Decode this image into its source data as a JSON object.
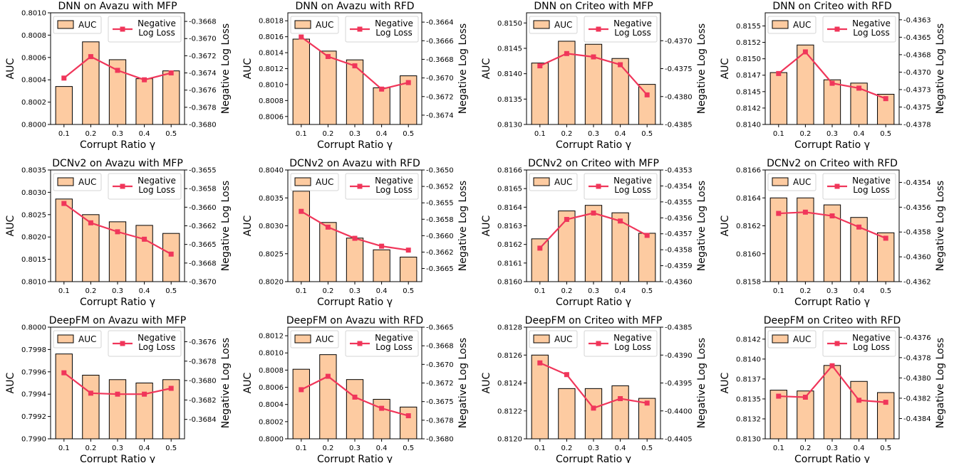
{
  "style": {
    "bar_fill": "#fdcba1",
    "bar_edge": "#000000",
    "line_color": "#f0365a"
  },
  "chart_data": [
    {
      "type": "bar",
      "title": "DNN on Avazu with MFP",
      "xlabel": "Corrupt Ratio γ",
      "ylabel": "AUC",
      "ylabel_right": "Negative Log Loss",
      "categories": [
        "0.1",
        "0.2",
        "0.3",
        "0.4",
        "0.5"
      ],
      "legend_position": "top",
      "series": [
        {
          "name": "AUC",
          "kind": "bar",
          "axis": "left",
          "values": [
            0.80034,
            0.80074,
            0.80058,
            0.80041,
            0.80048
          ]
        },
        {
          "name": "Negative Log Loss",
          "legend_lines": [
            "Negative",
            "Log Loss"
          ],
          "kind": "line",
          "axis": "right",
          "values": [
            -0.36746,
            -0.36721,
            -0.36737,
            -0.36748,
            -0.3674
          ]
        }
      ],
      "ylim": [
        0.8,
        0.801
      ],
      "y2lim": [
        -0.368,
        -0.3667
      ],
      "yticks": [
        0.8,
        0.8002,
        0.8004,
        0.8006,
        0.8008,
        0.801
      ],
      "y2ticks": [
        -0.368,
        -0.3678,
        -0.3676,
        -0.3674,
        -0.3672,
        -0.367,
        -0.3668
      ],
      "ytick_labels": [
        "0.8000",
        "0.8002",
        "0.8004",
        "0.8006",
        "0.8008",
        "0.8010"
      ],
      "y2tick_labels": [
        "-0.3680",
        "-0.3678",
        "-0.3676",
        "-0.3674",
        "-0.3672",
        "-0.3670",
        "-0.3668"
      ]
    },
    {
      "type": "bar",
      "title": "DNN on Avazu with RFD",
      "xlabel": "Corrupt Ratio γ",
      "ylabel": "AUC",
      "ylabel_right": "Negative Log Loss",
      "categories": [
        "0.1",
        "0.2",
        "0.3",
        "0.4",
        "0.5"
      ],
      "legend_position": "top",
      "series": [
        {
          "name": "AUC",
          "kind": "bar",
          "axis": "left",
          "values": [
            0.80157,
            0.80142,
            0.80131,
            0.80096,
            0.80111
          ]
        },
        {
          "name": "Negative Log Loss",
          "legend_lines": [
            "Negative",
            "Log Loss"
          ],
          "kind": "line",
          "axis": "right",
          "values": [
            -0.36656,
            -0.36677,
            -0.36687,
            -0.36712,
            -0.36705
          ]
        }
      ],
      "ylim": [
        0.8005,
        0.8019
      ],
      "y2lim": [
        -0.3675,
        -0.3663
      ],
      "yticks": [
        0.8006,
        0.8008,
        0.801,
        0.8012,
        0.8014,
        0.8016,
        0.8018
      ],
      "y2ticks": [
        -0.3674,
        -0.3672,
        -0.367,
        -0.3668,
        -0.3666,
        -0.3664
      ],
      "ytick_labels": [
        "0.8006",
        "0.8008",
        "0.8010",
        "0.8012",
        "0.8014",
        "0.8016",
        "0.8018"
      ],
      "y2tick_labels": [
        "-0.3674",
        "-0.3672",
        "-0.3670",
        "-0.3668",
        "-0.3666",
        "-0.3664"
      ]
    },
    {
      "type": "bar",
      "title": "DNN on Criteo with MFP",
      "xlabel": "Corrupt Ratio γ",
      "ylabel": "AUC",
      "ylabel_right": "Negative Log Loss",
      "categories": [
        "0.1",
        "0.2",
        "0.3",
        "0.4",
        "0.5"
      ],
      "legend_position": "top",
      "series": [
        {
          "name": "AUC",
          "kind": "bar",
          "axis": "left",
          "values": [
            0.81421,
            0.81464,
            0.81458,
            0.8143,
            0.81379
          ]
        },
        {
          "name": "Negative Log Loss",
          "legend_lines": [
            "Negative",
            "Log Loss"
          ],
          "kind": "line",
          "axis": "right",
          "values": [
            -0.43745,
            -0.43723,
            -0.43729,
            -0.43743,
            -0.43797
          ]
        }
      ],
      "ylim": [
        0.813,
        0.8152
      ],
      "y2lim": [
        -0.4385,
        -0.4365
      ],
      "yticks": [
        0.813,
        0.8135,
        0.814,
        0.8145,
        0.815
      ],
      "y2ticks": [
        -0.4385,
        -0.438,
        -0.4375,
        -0.437
      ],
      "ytick_labels": [
        "0.8130",
        "0.8135",
        "0.8140",
        "0.8145",
        "0.8150"
      ],
      "y2tick_labels": [
        "-0.4385",
        "-0.4380",
        "-0.4375",
        "-0.4370"
      ]
    },
    {
      "type": "bar",
      "title": "DNN on Criteo with RFD",
      "xlabel": "Corrupt Ratio γ",
      "ylabel": "AUC",
      "ylabel_right": "Negative Log Loss",
      "categories": [
        "0.1",
        "0.2",
        "0.3",
        "0.4",
        "0.5"
      ],
      "legend_position": "top",
      "series": [
        {
          "name": "AUC",
          "kind": "bar",
          "axis": "left",
          "values": [
            0.81479,
            0.81521,
            0.81468,
            0.81463,
            0.81446
          ]
        },
        {
          "name": "Negative Log Loss",
          "legend_lines": [
            "Negative",
            "Log Loss"
          ],
          "kind": "line",
          "axis": "right",
          "values": [
            -0.43707,
            -0.43676,
            -0.43721,
            -0.43728,
            -0.43743
          ]
        }
      ],
      "ylim": [
        0.814,
        0.8157
      ],
      "y2lim": [
        -0.4378,
        -0.4362
      ],
      "yticks": [
        0.814,
        0.81425,
        0.8145,
        0.81475,
        0.815,
        0.81525,
        0.8155
      ],
      "y2ticks": [
        -0.4378,
        -0.43755,
        -0.4373,
        -0.43705,
        -0.4368,
        -0.43655,
        -0.4363
      ],
      "ytick_labels": [
        "0.8140",
        "0.8142",
        "0.8145",
        "0.8147",
        "0.8150",
        "0.8152",
        "0.8155"
      ],
      "y2tick_labels": [
        "-0.4378",
        "-0.4375",
        "-0.4373",
        "-0.4370",
        "-0.4368",
        "-0.4365",
        "-0.4363"
      ]
    },
    {
      "type": "bar",
      "title": "DCNv2 on Avazu with MFP",
      "xlabel": "Corrupt Ratio γ",
      "ylabel": "AUC",
      "ylabel_right": "Negative Log Loss",
      "categories": [
        "0.1",
        "0.2",
        "0.3",
        "0.4",
        "0.5"
      ],
      "legend_position": "top",
      "series": [
        {
          "name": "AUC",
          "kind": "bar",
          "axis": "left",
          "values": [
            0.80285,
            0.8025,
            0.80234,
            0.80226,
            0.80208
          ]
        },
        {
          "name": "Negative Log Loss",
          "legend_lines": [
            "Negative",
            "Log Loss"
          ],
          "kind": "line",
          "axis": "right",
          "values": [
            -0.36595,
            -0.36621,
            -0.36633,
            -0.36643,
            -0.36663
          ]
        }
      ],
      "ylim": [
        0.801,
        0.8035
      ],
      "y2lim": [
        -0.367,
        -0.3655
      ],
      "yticks": [
        0.801,
        0.8015,
        0.802,
        0.8025,
        0.803,
        0.8035
      ],
      "y2ticks": [
        -0.367,
        -0.36675,
        -0.3665,
        -0.36625,
        -0.366,
        -0.36575,
        -0.3655
      ],
      "ytick_labels": [
        "0.8010",
        "0.8015",
        "0.8020",
        "0.8025",
        "0.8030",
        "0.8035"
      ],
      "y2tick_labels": [
        "-0.3670",
        "-0.3668",
        "-0.3665",
        "-0.3662",
        "-0.3660",
        "-0.3658",
        "-0.3655"
      ]
    },
    {
      "type": "bar",
      "title": "DCNv2 on Avazu with RFD",
      "xlabel": "Corrupt Ratio γ",
      "ylabel": "AUC",
      "ylabel_right": "Negative Log Loss",
      "categories": [
        "0.1",
        "0.2",
        "0.3",
        "0.4",
        "0.5"
      ],
      "legend_position": "top",
      "series": [
        {
          "name": "AUC",
          "kind": "bar",
          "axis": "left",
          "values": [
            0.80362,
            0.80306,
            0.80278,
            0.80257,
            0.80244
          ]
        },
        {
          "name": "Negative Log Loss",
          "legend_lines": [
            "Negative",
            "Log Loss"
          ],
          "kind": "line",
          "axis": "right",
          "values": [
            -0.36563,
            -0.36587,
            -0.36604,
            -0.36616,
            -0.36622
          ]
        }
      ],
      "ylim": [
        0.802,
        0.804
      ],
      "y2lim": [
        -0.3667,
        -0.365
      ],
      "yticks": [
        0.802,
        0.8025,
        0.803,
        0.8035,
        0.804
      ],
      "y2ticks": [
        -0.3665,
        -0.36625,
        -0.366,
        -0.36575,
        -0.3655,
        -0.36525,
        -0.365
      ],
      "ytick_labels": [
        "0.8020",
        "0.8025",
        "0.8030",
        "0.8035",
        "0.8040"
      ],
      "y2tick_labels": [
        "-0.3665",
        "-0.3662",
        "-0.3660",
        "-0.3658",
        "-0.3655",
        "-0.3652",
        "-0.3650"
      ]
    },
    {
      "type": "bar",
      "title": "DCNv2 on Criteo with MFP",
      "xlabel": "Corrupt Ratio γ",
      "ylabel": "AUC",
      "ylabel_right": "Negative Log Loss",
      "categories": [
        "0.1",
        "0.2",
        "0.3",
        "0.4",
        "0.5"
      ],
      "legend_position": "top",
      "series": [
        {
          "name": "AUC",
          "kind": "bar",
          "axis": "left",
          "values": [
            0.81623,
            0.81638,
            0.81641,
            0.81637,
            0.81626
          ]
        },
        {
          "name": "Negative Log Loss",
          "legend_lines": [
            "Negative",
            "Log Loss"
          ],
          "kind": "line",
          "axis": "right",
          "values": [
            -0.43579,
            -0.43561,
            -0.43557,
            -0.43562,
            -0.43571
          ]
        }
      ],
      "ylim": [
        0.816,
        0.8166
      ],
      "y2lim": [
        -0.436,
        -0.4353
      ],
      "yticks": [
        0.816,
        0.8161,
        0.8162,
        0.8163,
        0.8164,
        0.8165,
        0.8166
      ],
      "y2ticks": [
        -0.436,
        -0.4359,
        -0.4358,
        -0.4357,
        -0.4356,
        -0.4355,
        -0.4354,
        -0.4353
      ],
      "ytick_labels": [
        "0.8160",
        "0.8161",
        "0.8162",
        "0.8163",
        "0.8164",
        "0.8165",
        "0.8166"
      ],
      "y2tick_labels": [
        "-0.4360",
        "-0.4359",
        "-0.4358",
        "-0.4357",
        "-0.4356",
        "-0.4355",
        "-0.4354",
        "-0.4353"
      ]
    },
    {
      "type": "bar",
      "title": "DCNv2 on Criteo with RFD",
      "xlabel": "Corrupt Ratio γ",
      "ylabel": "AUC",
      "ylabel_right": "Negative Log Loss",
      "categories": [
        "0.1",
        "0.2",
        "0.3",
        "0.4",
        "0.5"
      ],
      "legend_position": "top",
      "series": [
        {
          "name": "AUC",
          "kind": "bar",
          "axis": "left",
          "values": [
            0.8164,
            0.8164,
            0.81635,
            0.81626,
            0.81615
          ]
        },
        {
          "name": "Negative Log Loss",
          "legend_lines": [
            "Negative",
            "Log Loss"
          ],
          "kind": "line",
          "axis": "right",
          "values": [
            -0.43565,
            -0.43564,
            -0.43567,
            -0.43576,
            -0.43585
          ]
        }
      ],
      "ylim": [
        0.8158,
        0.8166
      ],
      "y2lim": [
        -0.4362,
        -0.4353
      ],
      "yticks": [
        0.8158,
        0.816,
        0.8162,
        0.8164,
        0.8166
      ],
      "y2ticks": [
        -0.4362,
        -0.436,
        -0.4358,
        -0.4356,
        -0.4354
      ],
      "ytick_labels": [
        "0.8158",
        "0.8160",
        "0.8162",
        "0.8164",
        "0.8166"
      ],
      "y2tick_labels": [
        "-0.4362",
        "-0.4360",
        "-0.4358",
        "-0.4356",
        "-0.4354"
      ]
    },
    {
      "type": "bar",
      "title": "DeepFM on Avazu with MFP",
      "xlabel": "Corrupt Ratio γ",
      "ylabel": "AUC",
      "ylabel_right": "Negative Log Loss",
      "categories": [
        "0.1",
        "0.2",
        "0.3",
        "0.4",
        "0.5"
      ],
      "legend_position": "top",
      "series": [
        {
          "name": "AUC",
          "kind": "bar",
          "axis": "left",
          "values": [
            0.79976,
            0.79957,
            0.79953,
            0.7995,
            0.79953
          ]
        },
        {
          "name": "Negative Log Loss",
          "legend_lines": [
            "Negative",
            "Log Loss"
          ],
          "kind": "line",
          "axis": "right",
          "values": [
            -0.36792,
            -0.36813,
            -0.36814,
            -0.36814,
            -0.36808
          ]
        }
      ],
      "ylim": [
        0.799,
        0.8
      ],
      "y2lim": [
        -0.3686,
        -0.36745
      ],
      "yticks": [
        0.799,
        0.7992,
        0.7994,
        0.7996,
        0.7998,
        0.8
      ],
      "y2ticks": [
        -0.3684,
        -0.3682,
        -0.368,
        -0.3678,
        -0.3676
      ],
      "ytick_labels": [
        "0.7990",
        "0.7992",
        "0.7994",
        "0.7996",
        "0.7998",
        "0.8000"
      ],
      "y2tick_labels": [
        "-0.3684",
        "-0.3682",
        "-0.3680",
        "-0.3678",
        "-0.3676"
      ]
    },
    {
      "type": "bar",
      "title": "DeepFM on Avazu with RFD",
      "xlabel": "Corrupt Ratio γ",
      "ylabel": "AUC",
      "ylabel_right": "Negative Log Loss",
      "categories": [
        "0.1",
        "0.2",
        "0.3",
        "0.4",
        "0.5"
      ],
      "legend_position": "top",
      "series": [
        {
          "name": "AUC",
          "kind": "bar",
          "axis": "left",
          "values": [
            0.80081,
            0.80098,
            0.80069,
            0.80046,
            0.80037
          ]
        },
        {
          "name": "Negative Log Loss",
          "legend_lines": [
            "Negative",
            "Log Loss"
          ],
          "kind": "line",
          "axis": "right",
          "values": [
            -0.36734,
            -0.36716,
            -0.36744,
            -0.36759,
            -0.36769
          ]
        }
      ],
      "ylim": [
        0.8,
        0.8013
      ],
      "y2lim": [
        -0.368,
        -0.3665
      ],
      "yticks": [
        0.8,
        0.8002,
        0.8004,
        0.8006,
        0.8008,
        0.801,
        0.8012
      ],
      "y2ticks": [
        -0.368,
        -0.36775,
        -0.3675,
        -0.36725,
        -0.367,
        -0.36675,
        -0.3665
      ],
      "ytick_labels": [
        "0.8000",
        "0.8002",
        "0.8004",
        "0.8006",
        "0.8008",
        "0.8010",
        "0.8012"
      ],
      "y2tick_labels": [
        "-0.3680",
        "-0.3678",
        "-0.3675",
        "-0.3672",
        "-0.3670",
        "-0.3668",
        "-0.3665"
      ]
    },
    {
      "type": "bar",
      "title": "DeepFM on Criteo with MFP",
      "xlabel": "Corrupt Ratio γ",
      "ylabel": "AUC",
      "ylabel_right": "Negative Log Loss",
      "categories": [
        "0.1",
        "0.2",
        "0.3",
        "0.4",
        "0.5"
      ],
      "legend_position": "top",
      "series": [
        {
          "name": "AUC",
          "kind": "bar",
          "axis": "left",
          "values": [
            0.8126,
            0.81236,
            0.81236,
            0.81238,
            0.81229
          ]
        },
        {
          "name": "Negative Log Loss",
          "legend_lines": [
            "Negative",
            "Log Loss"
          ],
          "kind": "line",
          "axis": "right",
          "values": [
            -0.43914,
            -0.43935,
            -0.43995,
            -0.43978,
            -0.43986
          ]
        }
      ],
      "ylim": [
        0.812,
        0.8128
      ],
      "y2lim": [
        -0.4405,
        -0.4385
      ],
      "yticks": [
        0.812,
        0.8122,
        0.8124,
        0.8126,
        0.8128
      ],
      "y2ticks": [
        -0.4405,
        -0.44,
        -0.4395,
        -0.439,
        -0.4385
      ],
      "ytick_labels": [
        "0.8120",
        "0.8122",
        "0.8124",
        "0.8126",
        "0.8128"
      ],
      "y2tick_labels": [
        "-0.4405",
        "-0.4400",
        "-0.4395",
        "-0.4390",
        "-0.4385"
      ]
    },
    {
      "type": "bar",
      "title": "DeepFM on Criteo with RFD",
      "xlabel": "Corrupt Ratio γ",
      "ylabel": "AUC",
      "ylabel_right": "Negative Log Loss",
      "categories": [
        "0.1",
        "0.2",
        "0.3",
        "0.4",
        "0.5"
      ],
      "legend_position": "top",
      "series": [
        {
          "name": "AUC",
          "kind": "bar",
          "axis": "left",
          "values": [
            0.81361,
            0.8136,
            0.81392,
            0.81372,
            0.81358
          ]
        },
        {
          "name": "Negative Log Loss",
          "legend_lines": [
            "Negative",
            "Log Loss"
          ],
          "kind": "line",
          "axis": "right",
          "values": [
            -0.43818,
            -0.43819,
            -0.43788,
            -0.43822,
            -0.43824
          ]
        }
      ],
      "ylim": [
        0.813,
        0.8144
      ],
      "y2lim": [
        -0.4386,
        -0.4375
      ],
      "yticks": [
        0.813,
        0.81325,
        0.8135,
        0.81375,
        0.814,
        0.81425
      ],
      "y2ticks": [
        -0.4384,
        -0.4382,
        -0.438,
        -0.4378,
        -0.4376
      ],
      "ytick_labels": [
        "0.8130",
        "0.8132",
        "0.8135",
        "0.8137",
        "0.8140",
        "0.8142"
      ],
      "y2tick_labels": [
        "-0.4384",
        "-0.4382",
        "-0.4380",
        "-0.4378",
        "-0.4376"
      ]
    }
  ]
}
